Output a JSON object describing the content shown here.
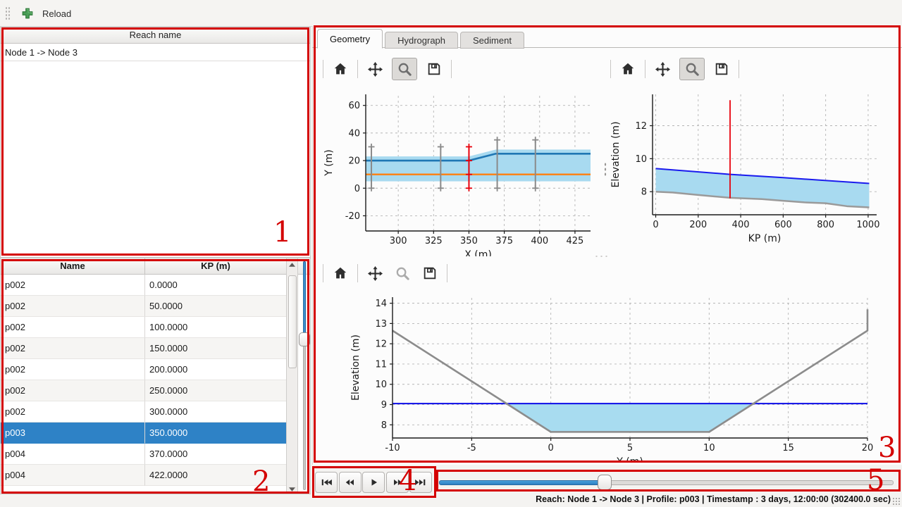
{
  "toolbar": {
    "reload_label": "Reload"
  },
  "reach_panel": {
    "header": "Reach name",
    "items": [
      "Node 1 -> Node 3"
    ]
  },
  "profile_table": {
    "columns": [
      "Name",
      "KP (m)"
    ],
    "rows": [
      [
        "p002",
        "0.0000"
      ],
      [
        "p002",
        "50.0000"
      ],
      [
        "p002",
        "100.0000"
      ],
      [
        "p002",
        "150.0000"
      ],
      [
        "p002",
        "200.0000"
      ],
      [
        "p002",
        "250.0000"
      ],
      [
        "p002",
        "300.0000"
      ],
      [
        "p003",
        "350.0000"
      ],
      [
        "p004",
        "370.0000"
      ],
      [
        "p004",
        "422.0000"
      ]
    ],
    "selected_row_index": 7,
    "vslider_pct": 33
  },
  "tabs": [
    {
      "label": "Geometry",
      "active": true
    },
    {
      "label": "Hydrograph",
      "active": false
    },
    {
      "label": "Sediment",
      "active": false
    }
  ],
  "plot_toolbar_icons": [
    "home",
    "pan",
    "zoom",
    "save"
  ],
  "player": {
    "buttons": [
      "skip-to-start",
      "step-backward",
      "play",
      "step-forward",
      "skip-to-end"
    ],
    "slider_pct": 36
  },
  "status_bar": {
    "text": "Reach: Node 1 -> Node 3 | Profile: p003 | Timestamp : 3 days, 12:00:00 (302400.0 sec)"
  },
  "annotations": [
    {
      "label": "1"
    },
    {
      "label": "2"
    },
    {
      "label": "3"
    },
    {
      "label": "4"
    },
    {
      "label": "5"
    }
  ],
  "colors": {
    "annotation_red": "#d40000",
    "selection_blue": "#2e82c6",
    "water_fill": "#a8daf0",
    "bank_blue": "#1f77b4",
    "axis_orange": "#ff7f0e",
    "water_line_blue": "#1a1aee",
    "bed_grey": "#8f8f8f",
    "marker_red": "#e8000b"
  },
  "chart_data": [
    {
      "type": "line",
      "title": "",
      "xlabel": "X (m)",
      "ylabel": "Y (m)",
      "xlim": [
        277,
        436
      ],
      "ylim": [
        -31,
        68
      ],
      "xticks": [
        300,
        325,
        350,
        375,
        400,
        425
      ],
      "yticks": [
        -20,
        0,
        20,
        40,
        60
      ],
      "grid": true,
      "legend": "none",
      "series": [
        {
          "name": "channel-band",
          "type": "fill",
          "color": "#a8daf0",
          "upper": [
            [
              277,
              23
            ],
            [
              350,
              23
            ],
            [
              369,
              28
            ],
            [
              436,
              28
            ]
          ],
          "lower": [
            [
              277,
              5
            ],
            [
              436,
              5
            ]
          ]
        },
        {
          "name": "bank-line",
          "type": "line",
          "color": "#1f77b4",
          "width": 2.6,
          "points": [
            [
              277,
              20
            ],
            [
              350,
              20
            ],
            [
              369,
              25
            ],
            [
              436,
              25
            ]
          ]
        },
        {
          "name": "river-axis-line",
          "type": "line",
          "color": "#ff7f0e",
          "width": 2.4,
          "points": [
            [
              277,
              10
            ],
            [
              436,
              10
            ]
          ]
        },
        {
          "name": "profile-trace",
          "type": "vline",
          "color": "#8a8a8a",
          "width": 2,
          "x": 281,
          "y0": 0,
          "y1": 30,
          "markers": [
            0,
            30
          ]
        },
        {
          "name": "profile-trace",
          "type": "vline",
          "color": "#8a8a8a",
          "width": 2,
          "x": 330,
          "y0": 0,
          "y1": 30,
          "markers": [
            0,
            30
          ]
        },
        {
          "name": "selected-profile-trace",
          "type": "vline",
          "color": "#e8000b",
          "width": 2,
          "x": 350,
          "y0": 0,
          "y1": 30,
          "markers": [
            0,
            10,
            20,
            30
          ]
        },
        {
          "name": "profile-trace",
          "type": "vline",
          "color": "#8a8a8a",
          "width": 2,
          "x": 370,
          "y0": 0,
          "y1": 35,
          "markers": [
            0,
            35
          ]
        },
        {
          "name": "profile-trace",
          "type": "vline",
          "color": "#8a8a8a",
          "width": 2,
          "x": 397,
          "y0": 0,
          "y1": 35,
          "markers": [
            0,
            35
          ]
        }
      ]
    },
    {
      "type": "line",
      "title": "",
      "xlabel": "KP (m)",
      "ylabel": "Elevation (m)",
      "xlim": [
        -15,
        1040
      ],
      "ylim": [
        6.6,
        13.9
      ],
      "xticks": [
        0,
        200,
        400,
        600,
        800,
        1000
      ],
      "yticks": [
        8,
        10,
        12
      ],
      "grid": true,
      "legend": "none",
      "series": [
        {
          "name": "water-fill",
          "type": "fill",
          "color": "#a8daf0",
          "upper": [
            [
              0,
              9.4
            ],
            [
              350,
              9.05
            ],
            [
              600,
              8.85
            ],
            [
              1005,
              8.5
            ]
          ],
          "lower": [
            [
              0,
              8.0
            ],
            [
              80,
              7.95
            ],
            [
              200,
              7.8
            ],
            [
              350,
              7.63
            ],
            [
              500,
              7.55
            ],
            [
              600,
              7.45
            ],
            [
              700,
              7.35
            ],
            [
              800,
              7.3
            ],
            [
              900,
              7.12
            ],
            [
              1005,
              7.05
            ]
          ]
        },
        {
          "name": "water-level",
          "type": "line",
          "color": "#1a1aee",
          "width": 2,
          "points": [
            [
              0,
              9.4
            ],
            [
              350,
              9.05
            ],
            [
              600,
              8.85
            ],
            [
              1005,
              8.5
            ]
          ]
        },
        {
          "name": "bed-profile",
          "type": "line",
          "color": "#9a9a9a",
          "width": 2.5,
          "points": [
            [
              0,
              8.0
            ],
            [
              80,
              7.95
            ],
            [
              200,
              7.8
            ],
            [
              350,
              7.63
            ],
            [
              500,
              7.55
            ],
            [
              600,
              7.45
            ],
            [
              700,
              7.35
            ],
            [
              800,
              7.3
            ],
            [
              900,
              7.12
            ],
            [
              1005,
              7.05
            ]
          ]
        },
        {
          "name": "current-kp-marker",
          "type": "vline",
          "color": "#e8000b",
          "width": 1.8,
          "x": 350,
          "y0": 7.6,
          "y1": 13.55,
          "markers": []
        }
      ]
    },
    {
      "type": "line",
      "title": "",
      "xlabel": "Y (m)",
      "ylabel": "Elevation (m)",
      "xlim": [
        -10,
        20
      ],
      "ylim": [
        7.35,
        14.3
      ],
      "xticks": [
        -10,
        -5,
        0,
        5,
        10,
        15,
        20
      ],
      "yticks": [
        8,
        9,
        10,
        11,
        12,
        13,
        14
      ],
      "grid": true,
      "legend": "none",
      "series": [
        {
          "name": "water-fill",
          "type": "fill",
          "color": "#a8dcf0",
          "upper": [
            [
              -2.8,
              9.05
            ],
            [
              12.8,
              9.05
            ]
          ],
          "lower": [
            [
              -2.8,
              9.05
            ],
            [
              0,
              7.65
            ],
            [
              10,
              7.65
            ],
            [
              12.8,
              9.05
            ]
          ]
        },
        {
          "name": "water-level",
          "type": "line",
          "color": "#0d0de8",
          "width": 2,
          "points": [
            [
              -10,
              9.05
            ],
            [
              20,
              9.05
            ]
          ]
        },
        {
          "name": "cross-section-bed",
          "type": "line",
          "color": "#8c8c8c",
          "width": 2.6,
          "points": [
            [
              -10,
              12.65
            ],
            [
              0,
              7.65
            ],
            [
              10,
              7.65
            ],
            [
              20,
              12.65
            ],
            [
              20,
              13.7
            ]
          ]
        }
      ]
    }
  ]
}
